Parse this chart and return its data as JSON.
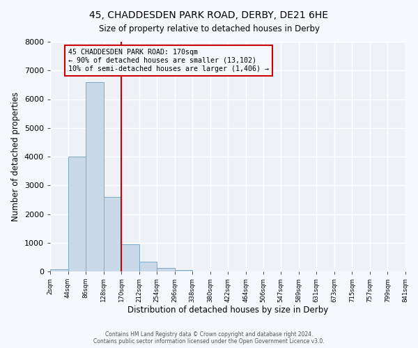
{
  "title1": "45, CHADDESDEN PARK ROAD, DERBY, DE21 6HE",
  "title2": "Size of property relative to detached houses in Derby",
  "xlabel": "Distribution of detached houses by size in Derby",
  "ylabel": "Number of detached properties",
  "bin_edges": [
    2,
    44,
    86,
    128,
    170,
    212,
    254,
    296,
    338,
    380,
    422,
    464,
    506,
    547,
    589,
    631,
    673,
    715,
    757,
    799,
    841
  ],
  "bin_heights": [
    70,
    4000,
    6600,
    2600,
    950,
    330,
    130,
    60,
    0,
    0,
    0,
    0,
    0,
    0,
    0,
    0,
    0,
    0,
    0,
    0
  ],
  "bar_color": "#c9d9e8",
  "bar_edge_color": "#7aaac8",
  "vline_color": "#cc0000",
  "annotation_box_color": "#cc0000",
  "annotation_text_line1": "45 CHADDESDEN PARK ROAD: 170sqm",
  "annotation_text_line2": "← 90% of detached houses are smaller (13,102)",
  "annotation_text_line3": "10% of semi-detached houses are larger (1,406) →",
  "ylim": [
    0,
    8000
  ],
  "yticks": [
    0,
    1000,
    2000,
    3000,
    4000,
    5000,
    6000,
    7000,
    8000
  ],
  "tick_labels": [
    "2sqm",
    "44sqm",
    "86sqm",
    "128sqm",
    "170sqm",
    "212sqm",
    "254sqm",
    "296sqm",
    "338sqm",
    "380sqm",
    "422sqm",
    "464sqm",
    "506sqm",
    "547sqm",
    "589sqm",
    "631sqm",
    "673sqm",
    "715sqm",
    "757sqm",
    "799sqm",
    "841sqm"
  ],
  "footer1": "Contains HM Land Registry data © Crown copyright and database right 2024.",
  "footer2": "Contains public sector information licensed under the Open Government Licence v3.0.",
  "fig_bg_color": "#f5f8fc",
  "plot_bg_color": "#eef2f7",
  "grid_color": "#ffffff"
}
